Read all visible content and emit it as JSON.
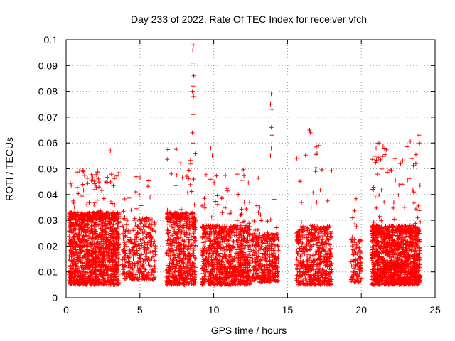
{
  "chart_data": {
    "type": "scatter",
    "title": "Day 233 of 2022, Rate Of TEC Index for receiver vfch",
    "xlabel": "GPS time / hours",
    "ylabel": "ROTI / TECUs",
    "xlim": [
      0,
      25
    ],
    "ylim": [
      0,
      0.1
    ],
    "xticks": [
      "0",
      "5",
      "10",
      "15",
      "20",
      "25"
    ],
    "yticks": [
      "0",
      "0.01",
      "0.02",
      "0.03",
      "0.04",
      "0.05",
      "0.06",
      "0.07",
      "0.08",
      "0.09",
      "0.1"
    ],
    "grid": true,
    "marker": "+",
    "color": "#ff0000",
    "clusters": [
      {
        "x": [
          0.2,
          3.6
        ],
        "y_band": [
          0.005,
          0.03
        ],
        "peak": [
          0.03,
          0.05
        ],
        "density": 1400
      },
      {
        "x": [
          3.8,
          6.1
        ],
        "y_band": [
          0.007,
          0.025
        ],
        "peak": [
          0.028,
          0.049
        ],
        "density": 350
      },
      {
        "x": [
          6.8,
          8.8
        ],
        "y_band": [
          0.005,
          0.03
        ],
        "peak": [
          0.03,
          0.058
        ],
        "density": 600
      },
      {
        "x": [
          9.2,
          12.5
        ],
        "y_band": [
          0.005,
          0.025
        ],
        "peak": [
          0.025,
          0.05
        ],
        "density": 900
      },
      {
        "x": [
          12.6,
          14.4
        ],
        "y_band": [
          0.006,
          0.022
        ],
        "peak": [
          0.022,
          0.048
        ],
        "density": 380
      },
      {
        "x": [
          15.6,
          18.0
        ],
        "y_band": [
          0.005,
          0.025
        ],
        "peak": [
          0.025,
          0.06
        ],
        "density": 550
      },
      {
        "x": [
          19.3,
          20.0
        ],
        "y_band": [
          0.006,
          0.02
        ],
        "peak": [
          0.02,
          0.04
        ],
        "density": 110
      },
      {
        "x": [
          20.7,
          24.0
        ],
        "y_band": [
          0.005,
          0.025
        ],
        "peak": [
          0.025,
          0.061
        ],
        "density": 1300
      }
    ],
    "outliers": [
      {
        "x": 3.0,
        "y": 0.057
      },
      {
        "x": 8.6,
        "y": 0.1
      },
      {
        "x": 8.62,
        "y": 0.098
      },
      {
        "x": 8.58,
        "y": 0.096
      },
      {
        "x": 8.6,
        "y": 0.091
      },
      {
        "x": 8.65,
        "y": 0.086
      },
      {
        "x": 8.6,
        "y": 0.082
      },
      {
        "x": 8.55,
        "y": 0.08
      },
      {
        "x": 8.63,
        "y": 0.078
      },
      {
        "x": 8.6,
        "y": 0.071
      },
      {
        "x": 8.55,
        "y": 0.064
      },
      {
        "x": 8.6,
        "y": 0.06
      },
      {
        "x": 9.8,
        "y": 0.058
      },
      {
        "x": 9.9,
        "y": 0.055
      },
      {
        "x": 13.9,
        "y": 0.079
      },
      {
        "x": 13.85,
        "y": 0.075
      },
      {
        "x": 13.95,
        "y": 0.073
      },
      {
        "x": 13.9,
        "y": 0.066
      },
      {
        "x": 13.95,
        "y": 0.063
      },
      {
        "x": 13.9,
        "y": 0.058
      },
      {
        "x": 13.85,
        "y": 0.055
      },
      {
        "x": 16.5,
        "y": 0.065
      },
      {
        "x": 16.55,
        "y": 0.064
      },
      {
        "x": 17.1,
        "y": 0.059
      },
      {
        "x": 17.0,
        "y": 0.056
      },
      {
        "x": 21.0,
        "y": 0.058
      },
      {
        "x": 21.2,
        "y": 0.06
      },
      {
        "x": 23.9,
        "y": 0.063
      },
      {
        "x": 23.95,
        "y": 0.06
      }
    ]
  }
}
